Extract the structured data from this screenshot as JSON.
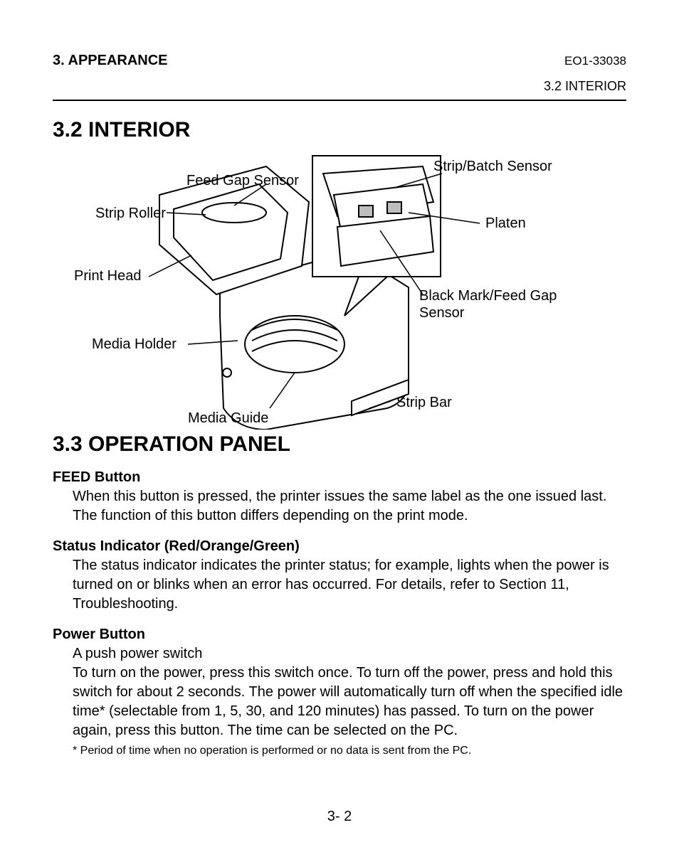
{
  "header": {
    "left": "3. APPEARANCE",
    "right": "EO1-33038",
    "sub_right": "3.2 INTERIOR"
  },
  "section_interior": {
    "title": "3.2  INTERIOR",
    "callouts": {
      "feed_gap_sensor": "Feed Gap Sensor",
      "strip_roller": "Strip Roller",
      "print_head": "Print Head",
      "media_holder": "Media Holder",
      "media_guide": "Media Guide",
      "strip_bar": "Strip Bar",
      "strip_batch_sensor": "Strip/Batch Sensor",
      "platen": "Platen",
      "black_mark_feed_gap_sensor": "Black Mark/Feed Gap\nSensor"
    }
  },
  "section_operation": {
    "title": "3.3  OPERATION PANEL",
    "feed_button_heading": "FEED Button",
    "feed_button_body": "When this button is pressed, the printer issues the same label as the one issued last.  The function of this button differs depending on the print mode.",
    "status_indicator_heading": "Status Indicator (Red/Orange/Green)",
    "status_indicator_body": "The status indicator indicates the printer status; for example, lights when the power is turned on or blinks when an error has occurred. For details, refer to Section 11, Troubleshooting.",
    "power_button_heading": "Power Button",
    "power_button_body": "A push power switch\nTo turn on the power, press this switch once.  To turn off the power, press and hold this switch for about 2 seconds.  The power will automatically turn off when the specified idle time* (selectable from 1, 5, 30, and 120 minutes) has passed. To turn on the power again, press this button.  The time can be selected on the PC.",
    "footnote": "* Period of time when no operation is performed or no data is sent from the PC."
  },
  "page_number": "3- 2",
  "diagram_style": {
    "line_color": "#000000",
    "line_width": 2,
    "inset_border_width": 2,
    "background": "#ffffff",
    "font_size_callout": 20
  }
}
